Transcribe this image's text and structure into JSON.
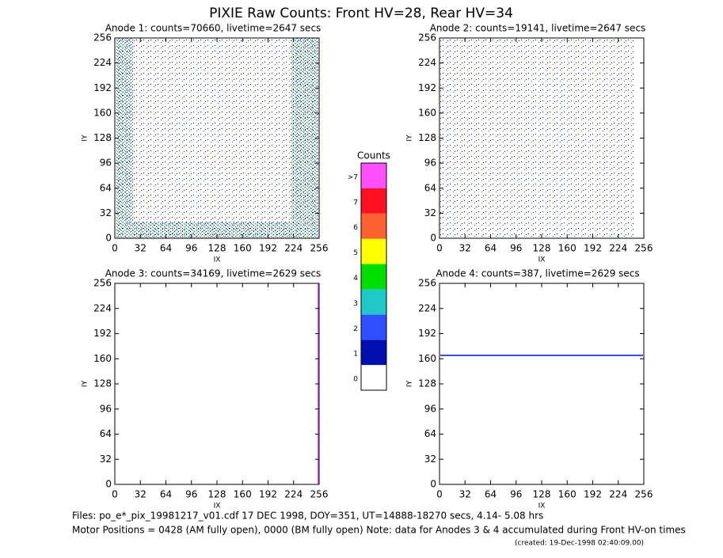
{
  "title": "PIXIE Raw Counts:  Front HV=28, Rear HV=34",
  "panels": [
    {
      "title": "Anode 1: counts=70660, livetime=2647 secs",
      "xlabel": "IX",
      "ylabel": "IY",
      "xlim": [
        0,
        256
      ],
      "ylim": [
        0,
        256
      ],
      "xticks": [
        0,
        32,
        64,
        96,
        128,
        160,
        192,
        224,
        256
      ],
      "yticks": [
        0,
        32,
        64,
        96,
        128,
        160,
        192,
        224,
        256
      ]
    },
    {
      "title": "Anode 2: counts=19141, livetime=2647 secs",
      "xlabel": "IX",
      "ylabel": "IY",
      "xlim": [
        0,
        256
      ],
      "ylim": [
        0,
        256
      ],
      "xticks": [
        0,
        32,
        64,
        96,
        128,
        160,
        192,
        224,
        256
      ],
      "yticks": [
        0,
        32,
        64,
        96,
        128,
        160,
        192,
        224,
        256
      ]
    },
    {
      "title": "Anode 3: counts=34169, livetime=2629 secs",
      "xlabel": "IX",
      "ylabel": "IY",
      "xlim": [
        0,
        256
      ],
      "ylim": [
        0,
        256
      ],
      "xticks": [
        0,
        32,
        64,
        96,
        128,
        160,
        192,
        224,
        256
      ],
      "yticks": [
        0,
        32,
        64,
        96,
        128,
        160,
        192,
        224,
        256
      ]
    },
    {
      "title": "Anode 4: counts=387, livetime=2629 secs",
      "xlabel": "IX",
      "ylabel": "IY",
      "xlim": [
        0,
        256
      ],
      "ylim": [
        0,
        256
      ],
      "xticks": [
        0,
        32,
        64,
        96,
        128,
        160,
        192,
        224,
        256
      ],
      "yticks": [
        0,
        32,
        64,
        96,
        128,
        160,
        192,
        224,
        256
      ]
    }
  ],
  "colorbar": {
    "title": "Counts",
    "levels": [
      {
        "label": "0",
        "color": "#ffffff"
      },
      {
        "label": "1",
        "color": "#0010b0"
      },
      {
        "label": "2",
        "color": "#3050ff"
      },
      {
        "label": "3",
        "color": "#20c8c8"
      },
      {
        "label": "4",
        "color": "#00e000"
      },
      {
        "label": "5",
        "color": "#ffff00"
      },
      {
        "label": "6",
        "color": "#ff6030"
      },
      {
        "label": "7",
        "color": "#ff1020"
      },
      {
        "label": ">7",
        "color": "#ff50ff"
      }
    ]
  },
  "footer": [
    "Files: po_e*_pix_19981217_v01.cdf    17 DEC 1998, DOY=351, UT=14888-18270 secs,  4.14- 5.08 hrs",
    "Motor Positions = 0428 (AM fully open), 0000 (BM fully open)    Note: data for Anodes 3 & 4 accumulated during Front HV-on times"
  ],
  "created": "(created: 19-Dec-1998 02:40:09.00)"
}
